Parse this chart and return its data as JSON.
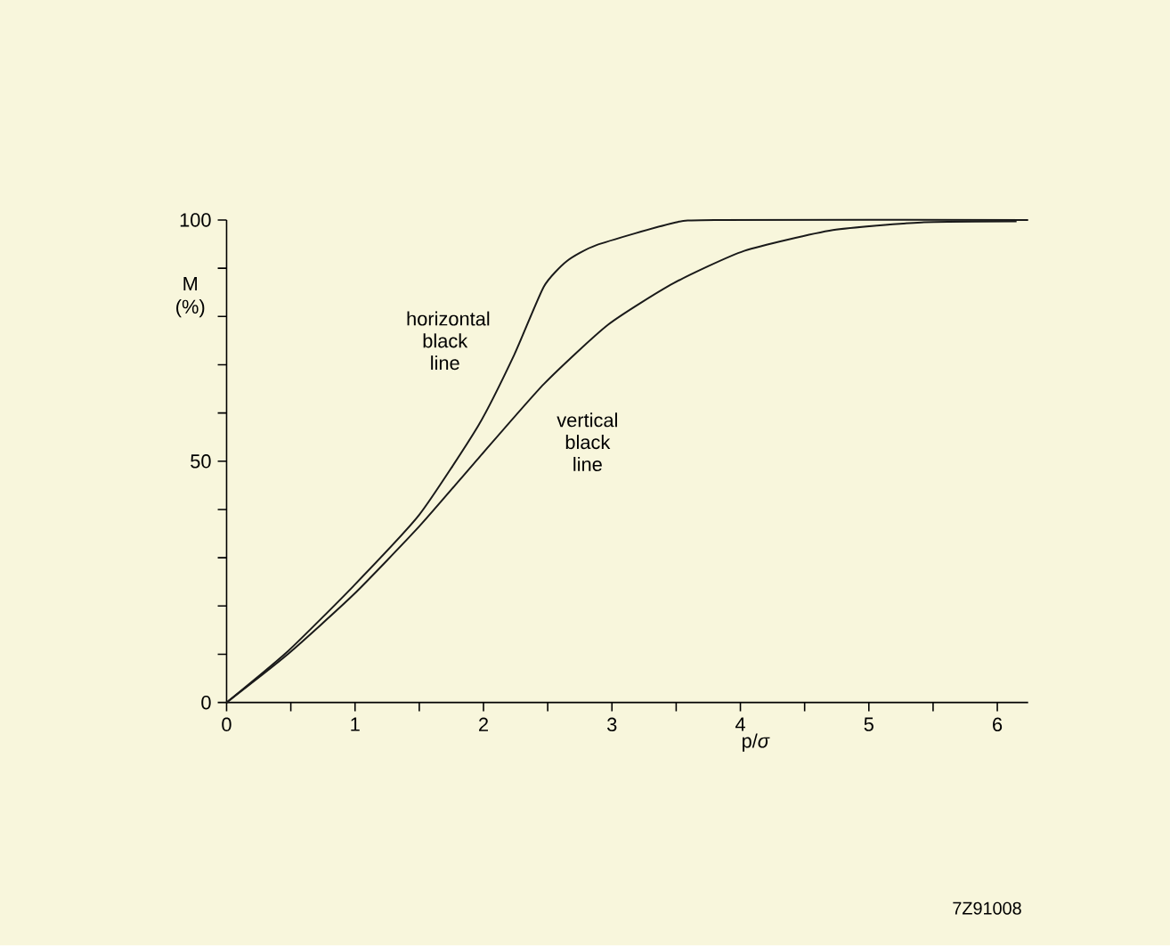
{
  "chart_data": {
    "type": "line",
    "xlabel": "p/*σ*",
    "ylabel": "M (%)",
    "series": [
      {
        "name": "horizontal black line",
        "color": "#1a1a1a",
        "x": [
          0,
          0.48,
          0.99,
          1.5,
          1.96,
          2.24,
          2.47,
          2.65,
          2.88,
          3.48,
          3.8,
          6.24
        ],
        "values": [
          0,
          10.7,
          24.2,
          38.9,
          57.4,
          72.1,
          86.2,
          91.5,
          94.8,
          99.4,
          100,
          100
        ]
      },
      {
        "name": "vertical black line",
        "color": "#1a1a1a",
        "x": [
          0,
          0.48,
          0.99,
          1.5,
          1.96,
          2.47,
          2.97,
          3.48,
          4.03,
          4.72,
          5.41,
          6.15
        ],
        "values": [
          0,
          10.1,
          22.4,
          36.5,
          50.6,
          66,
          78.3,
          86.9,
          93.6,
          97.9,
          99.5,
          99.7
        ]
      }
    ],
    "xlim": [
      0,
      6.24
    ],
    "ylim": [
      0,
      100
    ],
    "xticks": [
      0,
      {
        "value": 0.5,
        "label": null
      },
      1,
      {
        "value": 1.5,
        "label": null
      },
      2,
      {
        "value": 2.5,
        "label": null
      },
      3,
      {
        "value": 3.5,
        "label": null
      },
      4,
      {
        "value": 4.5,
        "label": null
      },
      5,
      {
        "value": 5.5,
        "label": null
      },
      6
    ],
    "yticks": [
      0,
      {
        "value": 10,
        "label": null
      },
      {
        "value": 20,
        "label": null
      },
      {
        "value": 30,
        "label": null
      },
      {
        "value": 40,
        "label": null
      },
      50,
      {
        "value": 60,
        "label": null
      },
      {
        "value": 70,
        "label": null
      },
      {
        "value": 80,
        "label": null
      },
      {
        "value": 90,
        "label": null
      },
      100
    ],
    "annotations": [
      "7Z91008"
    ]
  }
}
